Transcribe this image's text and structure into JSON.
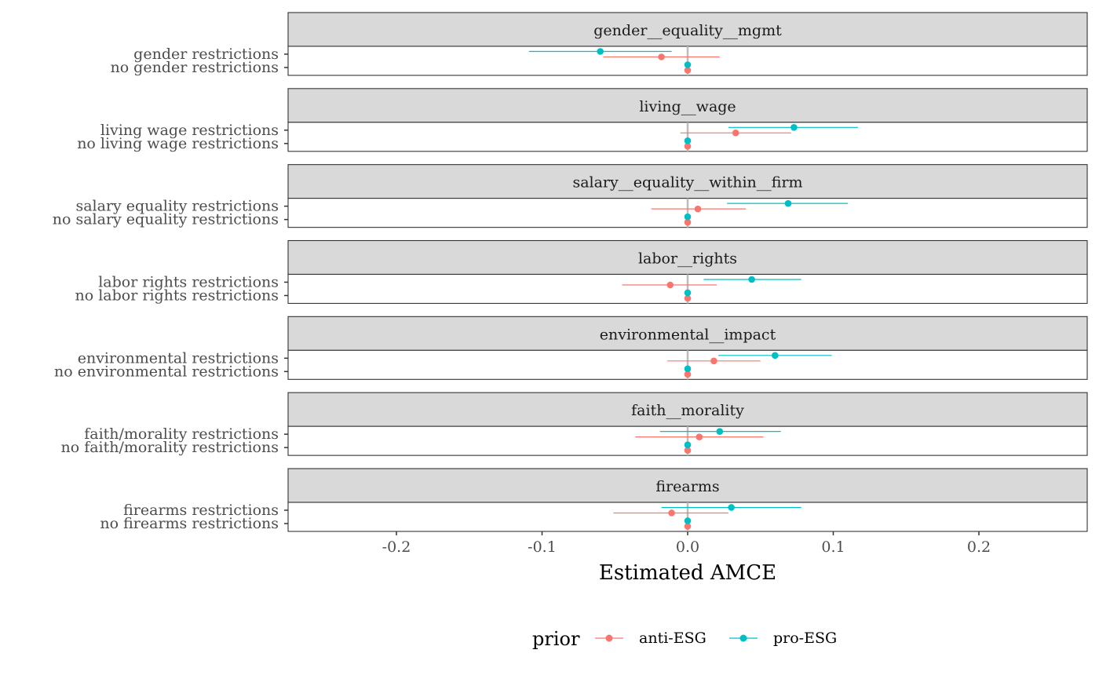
{
  "chart_data": {
    "type": "scatter",
    "subtype": "faceted point-range (coefficient plot)",
    "xlabel": "Estimated AMCE",
    "xlim": [
      -0.275,
      0.275
    ],
    "x_ticks": [
      -0.2,
      -0.1,
      0.0,
      0.1,
      0.2
    ],
    "x_tick_labels": [
      "-0.2",
      "-0.1",
      "0.0",
      "0.1",
      "0.2"
    ],
    "reference_line_x": 0,
    "grid": false,
    "legend": {
      "title": "prior",
      "placement": "bottom",
      "entries": [
        {
          "name": "anti-ESG",
          "color": "#F8766D"
        },
        {
          "name": "pro-ESG",
          "color": "#00BFC4"
        }
      ]
    },
    "facets": [
      {
        "name": "gender__equality__mgmt",
        "levels": [
          "gender restrictions",
          "no gender restrictions"
        ],
        "estimates": {
          "anti-ESG": [
            {
              "est": -0.018,
              "lo": -0.058,
              "hi": 0.022
            },
            {
              "est": 0,
              "lo": 0,
              "hi": 0
            }
          ],
          "pro-ESG": [
            {
              "est": -0.06,
              "lo": -0.109,
              "hi": -0.011
            },
            {
              "est": 0,
              "lo": 0,
              "hi": 0
            }
          ]
        }
      },
      {
        "name": "living__wage",
        "levels": [
          "living wage restrictions",
          "no living wage restrictions"
        ],
        "estimates": {
          "anti-ESG": [
            {
              "est": 0.033,
              "lo": -0.005,
              "hi": 0.071
            },
            {
              "est": 0,
              "lo": 0,
              "hi": 0
            }
          ],
          "pro-ESG": [
            {
              "est": 0.073,
              "lo": 0.028,
              "hi": 0.117
            },
            {
              "est": 0,
              "lo": 0,
              "hi": 0
            }
          ]
        }
      },
      {
        "name": "salary__equality__within__firm",
        "levels": [
          "salary equality restrictions",
          "no salary equality restrictions"
        ],
        "estimates": {
          "anti-ESG": [
            {
              "est": 0.007,
              "lo": -0.025,
              "hi": 0.04
            },
            {
              "est": 0,
              "lo": 0,
              "hi": 0
            }
          ],
          "pro-ESG": [
            {
              "est": 0.069,
              "lo": 0.027,
              "hi": 0.11
            },
            {
              "est": 0,
              "lo": 0,
              "hi": 0
            }
          ]
        }
      },
      {
        "name": "labor__rights",
        "levels": [
          "labor rights restrictions",
          "no labor rights restrictions"
        ],
        "estimates": {
          "anti-ESG": [
            {
              "est": -0.012,
              "lo": -0.045,
              "hi": 0.02
            },
            {
              "est": 0,
              "lo": 0,
              "hi": 0
            }
          ],
          "pro-ESG": [
            {
              "est": 0.044,
              "lo": 0.011,
              "hi": 0.078
            },
            {
              "est": 0,
              "lo": 0,
              "hi": 0
            }
          ]
        }
      },
      {
        "name": "environmental__impact",
        "levels": [
          "environmental restrictions",
          "no environmental restrictions"
        ],
        "estimates": {
          "anti-ESG": [
            {
              "est": 0.018,
              "lo": -0.014,
              "hi": 0.05
            },
            {
              "est": 0,
              "lo": 0,
              "hi": 0
            }
          ],
          "pro-ESG": [
            {
              "est": 0.06,
              "lo": 0.021,
              "hi": 0.099
            },
            {
              "est": 0,
              "lo": 0,
              "hi": 0
            }
          ]
        }
      },
      {
        "name": "faith__morality",
        "levels": [
          "faith/morality restrictions",
          "no faith/morality restrictions"
        ],
        "estimates": {
          "anti-ESG": [
            {
              "est": 0.008,
              "lo": -0.036,
              "hi": 0.052
            },
            {
              "est": 0,
              "lo": 0,
              "hi": 0
            }
          ],
          "pro-ESG": [
            {
              "est": 0.022,
              "lo": -0.019,
              "hi": 0.064
            },
            {
              "est": 0,
              "lo": 0,
              "hi": 0
            }
          ]
        }
      },
      {
        "name": "firearms",
        "levels": [
          "firearms restrictions",
          "no firearms restrictions"
        ],
        "estimates": {
          "anti-ESG": [
            {
              "est": -0.011,
              "lo": -0.051,
              "hi": 0.028
            },
            {
              "est": 0,
              "lo": 0,
              "hi": 0
            }
          ],
          "pro-ESG": [
            {
              "est": 0.03,
              "lo": -0.018,
              "hi": 0.078
            },
            {
              "est": 0,
              "lo": 0,
              "hi": 0
            }
          ]
        }
      }
    ]
  }
}
